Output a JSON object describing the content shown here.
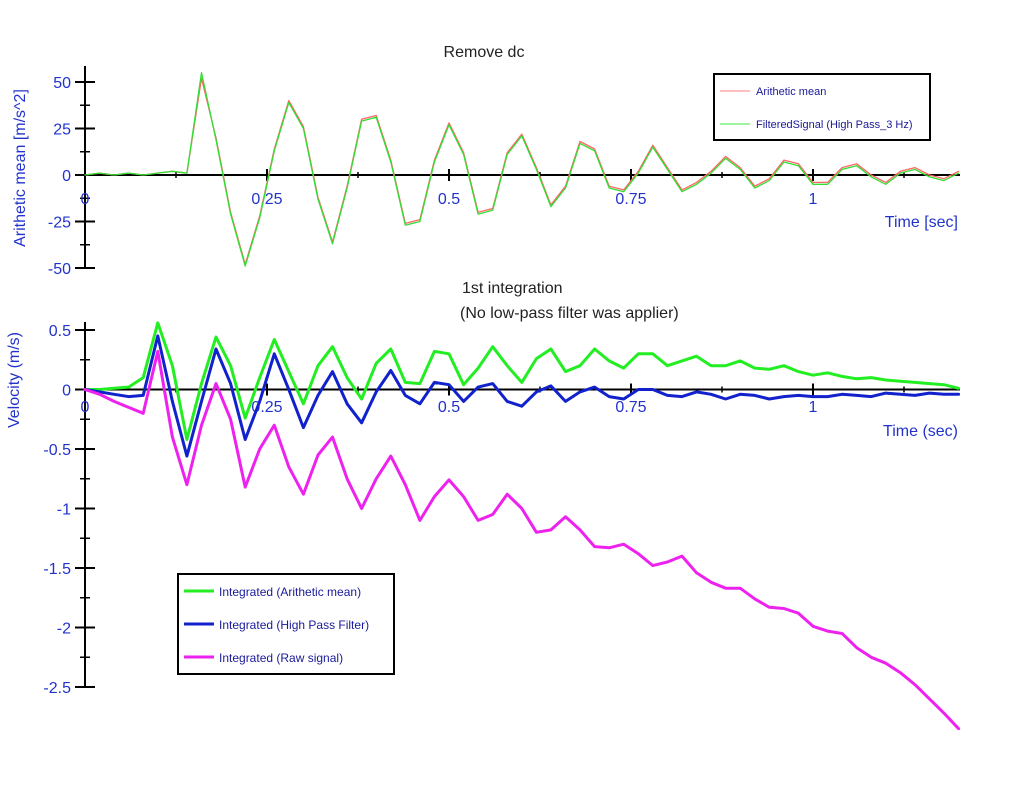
{
  "chart_data": [
    {
      "type": "line",
      "title": "Remove dc",
      "xlabel": "Time [sec]",
      "ylabel": "Arithetic mean [m/s^2]",
      "xlim": [
        0,
        1.2
      ],
      "ylim": [
        -50,
        50
      ],
      "x_ticks": [
        "0",
        "0.25",
        "0.5",
        "0.75",
        "1"
      ],
      "x_tick_values": [
        0,
        0.25,
        0.5,
        0.75,
        1
      ],
      "y_ticks": [
        "50",
        "25",
        "0",
        "-25",
        "-50"
      ],
      "y_tick_values": [
        50,
        25,
        0,
        -25,
        -50
      ],
      "legend_position": "top-right",
      "grid": false,
      "x_step": 0.02,
      "series": [
        {
          "name": "Arithetic mean",
          "color": "#ff6666",
          "values": [
            0,
            1,
            0,
            1,
            0,
            1,
            2,
            1,
            52,
            20,
            -20,
            -48,
            -22,
            14,
            40,
            26,
            -12,
            -36,
            -6,
            30,
            32,
            8,
            -26,
            -24,
            8,
            28,
            12,
            -20,
            -18,
            12,
            22,
            4,
            -16,
            -6,
            18,
            14,
            -6,
            -8,
            2,
            16,
            4,
            -8,
            -4,
            2,
            10,
            4,
            -6,
            -2,
            8,
            6,
            -4,
            -4,
            4,
            6,
            0,
            -4,
            2,
            4,
            0,
            -2,
            2
          ]
        },
        {
          "name": "FilteredSignal (High Pass_3 Hz)",
          "color": "#33dd33",
          "values": [
            0,
            1,
            0,
            1,
            0,
            1,
            2,
            1,
            55,
            19,
            -21,
            -49,
            -23,
            13,
            39,
            25,
            -13,
            -37,
            -7,
            29,
            31,
            7,
            -27,
            -25,
            7,
            27,
            11,
            -21,
            -19,
            11,
            21,
            3,
            -17,
            -7,
            17,
            13,
            -7,
            -9,
            1,
            15,
            3,
            -9,
            -5,
            1,
            9,
            3,
            -7,
            -3,
            7,
            5,
            -5,
            -5,
            3,
            5,
            -1,
            -5,
            1,
            3,
            -1,
            -3,
            1
          ]
        }
      ]
    },
    {
      "type": "line",
      "title": "1st integration",
      "subtitle": "(No low-pass filter was applier)",
      "xlabel": "Time (sec)",
      "ylabel": "Velocity (m/s)",
      "xlim": [
        0,
        1.2
      ],
      "ylim": [
        -2.85,
        0.55
      ],
      "x_ticks": [
        "0",
        "0.25",
        "0.5",
        "0.75",
        "1"
      ],
      "x_tick_values": [
        0,
        0.25,
        0.5,
        0.75,
        1
      ],
      "y_ticks": [
        "0.5",
        "0",
        "-0.5",
        "-1",
        "-1.5",
        "-2",
        "-2.5"
      ],
      "y_tick_values": [
        0.5,
        0,
        -0.5,
        -1,
        -1.5,
        -2,
        -2.5
      ],
      "legend_position": "bottom-left",
      "grid": false,
      "x_step": 0.02,
      "series": [
        {
          "name": "Integrated (Arithetic mean)",
          "color": "#22ee22",
          "values": [
            0,
            0,
            0.01,
            0.02,
            0.1,
            0.56,
            0.2,
            -0.42,
            0.05,
            0.44,
            0.2,
            -0.24,
            0.1,
            0.42,
            0.15,
            -0.12,
            0.2,
            0.36,
            0.1,
            -0.08,
            0.22,
            0.34,
            0.06,
            0.05,
            0.32,
            0.3,
            0.04,
            0.18,
            0.36,
            0.2,
            0.06,
            0.26,
            0.34,
            0.15,
            0.2,
            0.34,
            0.24,
            0.18,
            0.3,
            0.3,
            0.2,
            0.24,
            0.28,
            0.2,
            0.2,
            0.24,
            0.18,
            0.17,
            0.2,
            0.15,
            0.12,
            0.14,
            0.11,
            0.09,
            0.1,
            0.08,
            0.07,
            0.06,
            0.05,
            0.04,
            0.01
          ]
        },
        {
          "name": "Integrated (High Pass Filter)",
          "color": "#1122cc",
          "values": [
            0,
            -0.02,
            -0.04,
            -0.06,
            -0.05,
            0.45,
            -0.1,
            -0.56,
            -0.1,
            0.34,
            0.05,
            -0.42,
            -0.1,
            0.3,
            0.0,
            -0.32,
            -0.05,
            0.15,
            -0.12,
            -0.28,
            -0.02,
            0.16,
            -0.05,
            -0.12,
            0.06,
            0.04,
            -0.1,
            0.02,
            0.05,
            -0.1,
            -0.14,
            -0.02,
            0.03,
            -0.1,
            -0.02,
            0.02,
            -0.06,
            -0.08,
            0.0,
            0.0,
            -0.05,
            -0.06,
            -0.02,
            -0.04,
            -0.08,
            -0.04,
            -0.05,
            -0.08,
            -0.06,
            -0.05,
            -0.06,
            -0.06,
            -0.04,
            -0.05,
            -0.06,
            -0.03,
            -0.04,
            -0.05,
            -0.03,
            -0.04,
            -0.04
          ]
        },
        {
          "name": "Integrated (Raw signal)",
          "color": "#ee22ee",
          "values": [
            0,
            -0.04,
            -0.1,
            -0.15,
            -0.2,
            0.32,
            -0.4,
            -0.8,
            -0.3,
            0.05,
            -0.25,
            -0.82,
            -0.5,
            -0.3,
            -0.65,
            -0.88,
            -0.55,
            -0.4,
            -0.75,
            -1.0,
            -0.75,
            -0.56,
            -0.8,
            -1.1,
            -0.9,
            -0.76,
            -0.9,
            -1.1,
            -1.05,
            -0.88,
            -1.0,
            -1.2,
            -1.18,
            -1.07,
            -1.18,
            -1.32,
            -1.33,
            -1.3,
            -1.38,
            -1.48,
            -1.45,
            -1.4,
            -1.54,
            -1.62,
            -1.67,
            -1.67,
            -1.76,
            -1.83,
            -1.84,
            -1.88,
            -1.99,
            -2.03,
            -2.05,
            -2.17,
            -2.25,
            -2.3,
            -2.38,
            -2.48,
            -2.6,
            -2.72,
            -2.85
          ]
        }
      ]
    }
  ]
}
